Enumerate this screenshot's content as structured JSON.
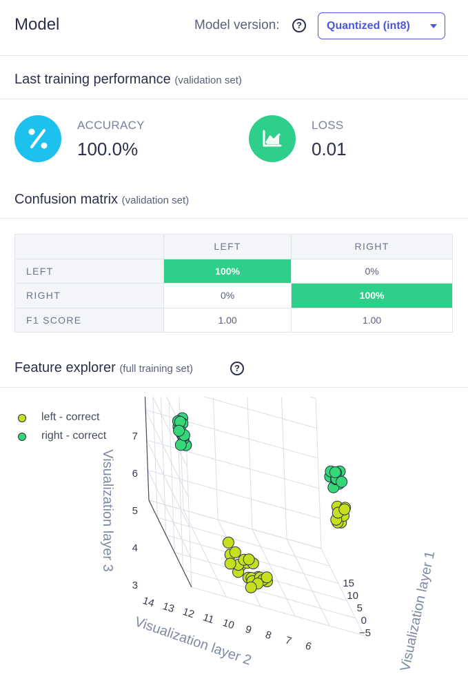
{
  "header": {
    "title": "Model",
    "version_label": "Model version:",
    "version_value": "Quantized (int8)"
  },
  "performance": {
    "title": "Last training performance",
    "subtitle": "(validation set)",
    "accuracy_label": "ACCURACY",
    "accuracy_value": "100.0%",
    "accuracy_icon": "percent-icon",
    "loss_label": "LOSS",
    "loss_value": "0.01",
    "loss_icon": "chart-icon",
    "colors": {
      "accuracy": "#1cc1ee",
      "loss": "#2ecf8a"
    }
  },
  "confusion": {
    "title": "Confusion matrix",
    "subtitle": "(validation set)",
    "columns": [
      "LEFT",
      "RIGHT"
    ],
    "rows": [
      {
        "label": "LEFT",
        "cells": [
          "100%",
          "0%"
        ]
      },
      {
        "label": "RIGHT",
        "cells": [
          "0%",
          "100%"
        ]
      },
      {
        "label": "F1 SCORE",
        "cells": [
          "1.00",
          "1.00"
        ]
      }
    ],
    "highlight_color": "#2ecf8a"
  },
  "features": {
    "title": "Feature explorer",
    "subtitle": "(full training set)"
  },
  "chart_data": {
    "type": "scatter",
    "dimensions": 3,
    "title": "",
    "xlabel": "Visualization layer 1",
    "ylabel": "Visualization layer 2",
    "zlabel": "Visualization layer 3",
    "x_ticks": [
      "−5",
      "0",
      "5",
      "10",
      "15"
    ],
    "y_ticks": [
      "14",
      "13",
      "12",
      "11",
      "10",
      "9",
      "8",
      "7",
      "6"
    ],
    "z_ticks": [
      "7",
      "6",
      "5",
      "4",
      "3"
    ],
    "legend_placement": "top-left",
    "series": [
      {
        "name": "left - correct",
        "color": "#c6e01f",
        "clusters": [
          {
            "center": [
              2,
              7.5,
              3.2
            ],
            "count": 22
          },
          {
            "center": [
              14,
              6.3,
              6.0
            ],
            "count": 8
          }
        ]
      },
      {
        "name": "right - correct",
        "color": "#34d876",
        "clusters": [
          {
            "center": [
              -4,
              11.5,
              6.0
            ],
            "count": 16
          },
          {
            "center": [
              14,
              7.0,
              7.0
            ],
            "count": 10
          }
        ]
      }
    ]
  }
}
